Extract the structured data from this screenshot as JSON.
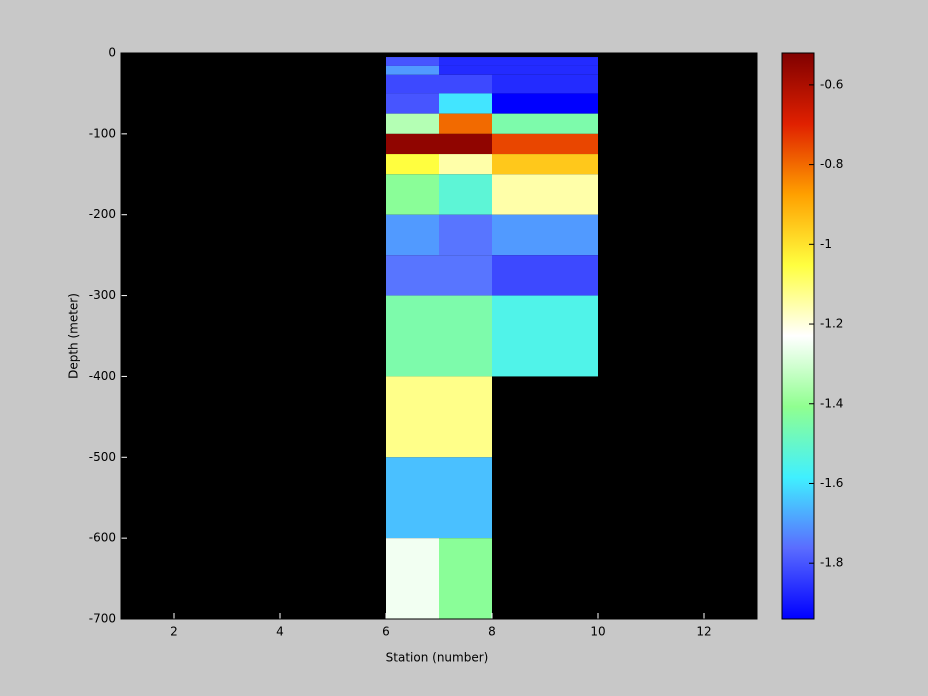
{
  "chart_data": {
    "type": "heatmap",
    "xlabel": "Station (number)",
    "ylabel": "Depth (meter)",
    "xlim": [
      1,
      13
    ],
    "ylim": [
      -700,
      0
    ],
    "xticks": [
      2,
      4,
      6,
      8,
      10,
      12
    ],
    "yticks": [
      0,
      -100,
      -200,
      -300,
      -400,
      -500,
      -600,
      -700
    ],
    "x_edges": [
      6,
      7,
      8,
      10
    ],
    "y_edges": [
      -5,
      -16,
      -27,
      -50,
      -75,
      -100,
      -125,
      -150,
      -200,
      -250,
      -300,
      -400,
      -500,
      -600,
      -700
    ],
    "values": [
      [
        -1.8,
        -1.87,
        -1.87
      ],
      [
        -1.7,
        -1.87,
        -1.87
      ],
      [
        -1.82,
        -1.82,
        -1.87
      ],
      [
        -1.8,
        -1.6,
        -1.94
      ],
      [
        -1.35,
        -0.8,
        -1.45
      ],
      [
        -0.55,
        -0.55,
        -0.75
      ],
      [
        -1.05,
        -1.15,
        -0.95
      ],
      [
        -1.42,
        -1.52,
        -1.15
      ],
      [
        -1.7,
        -1.75,
        -1.7
      ],
      [
        -1.75,
        -1.75,
        -1.82
      ],
      [
        -1.45,
        -1.45,
        -1.55
      ],
      [
        -1.12,
        -1.12,
        null
      ],
      [
        -1.65,
        -1.65,
        null
      ],
      [
        -1.25,
        -1.42,
        null
      ]
    ],
    "clim": [
      -1.94,
      -0.52
    ],
    "colormap": [
      "#0000ff",
      "#5a6cff",
      "#40f0ff",
      "#90ff90",
      "#ffffff",
      "#ffff40",
      "#ffa000",
      "#e02000",
      "#800000"
    ],
    "colorbar_ticks": [
      -0.6,
      -0.8,
      -1,
      -1.2,
      -1.4,
      -1.6,
      -1.8
    ],
    "background": "#000000"
  }
}
